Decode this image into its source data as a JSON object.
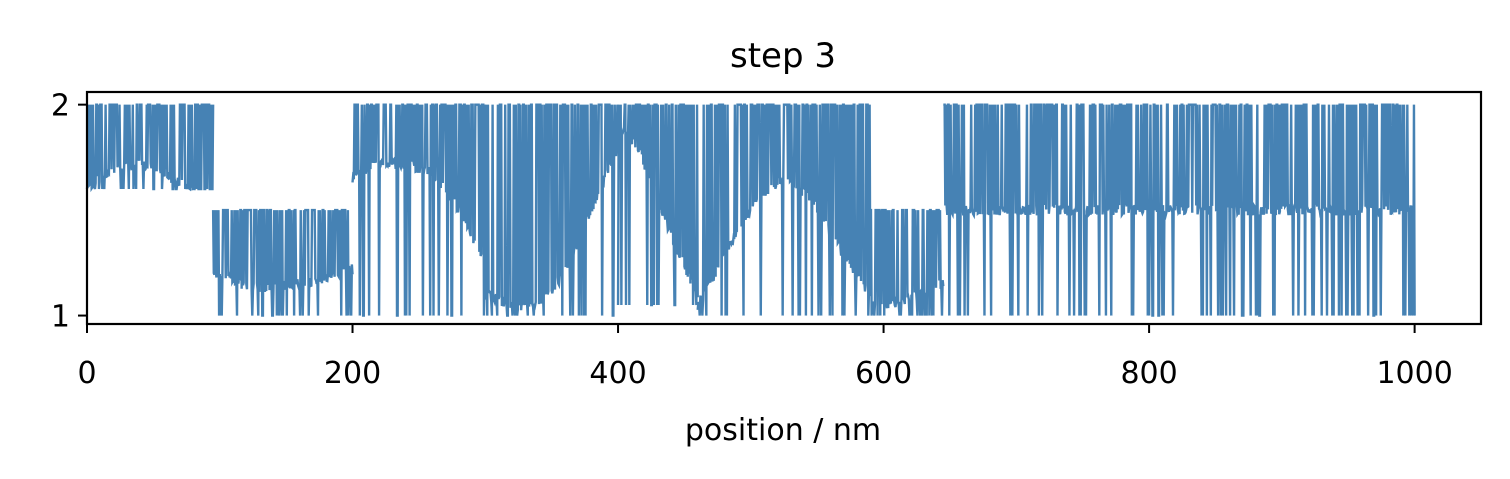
{
  "chart_data": {
    "type": "line",
    "title": "step 3",
    "xlabel": "position / nm",
    "ylabel": "",
    "xlim": [
      0,
      1050
    ],
    "ylim": [
      0.96,
      2.06
    ],
    "xticks": [
      0,
      200,
      400,
      600,
      800,
      1000
    ],
    "xtick_labels": [
      "0",
      "200",
      "400",
      "600",
      "800",
      "1000"
    ],
    "yticks": [
      1,
      2
    ],
    "ytick_labels": [
      "1",
      "2"
    ],
    "grid": false,
    "series": [
      {
        "color": "#4682b4",
        "segments": [
          {
            "x": [
              0,
              95
            ],
            "low": 1.6,
            "high": 2.0,
            "base": [
              1.6,
              1.7,
              1.72,
              1.68,
              1.6,
              1.55
            ]
          },
          {
            "x": [
              95,
              200
            ],
            "low": 1.0,
            "high": 1.5,
            "base": [
              1.2,
              1.15,
              1.13,
              1.15,
              1.18,
              1.22
            ]
          },
          {
            "x": [
              200,
              300
            ],
            "low": 1.0,
            "high": 2.0,
            "base": [
              1.65,
              1.72,
              1.72,
              1.68,
              1.5,
              1.25
            ]
          },
          {
            "x": [
              300,
              400
            ],
            "low": 1.0,
            "high": 2.0,
            "base": [
              1.1,
              1.05,
              1.05,
              1.2,
              1.5,
              1.8
            ]
          },
          {
            "x": [
              400,
              460
            ],
            "low": 1.05,
            "high": 2.0,
            "base": [
              1.9,
              1.8,
              1.55,
              1.3,
              1.1
            ]
          },
          {
            "x": [
              460,
              590
            ],
            "low": 1.0,
            "high": 2.0,
            "base": [
              1.05,
              1.3,
              1.55,
              1.65,
              1.55,
              1.3,
              1.1
            ]
          },
          {
            "x": [
              590,
              645
            ],
            "low": 1.0,
            "high": 1.5,
            "base": [
              1.05,
              1.05,
              1.1,
              1.15
            ]
          },
          {
            "x": [
              645,
              1000
            ],
            "low": 1.0,
            "high": 2.0,
            "base": [
              1.5,
              1.5,
              1.5,
              1.5,
              1.5
            ]
          }
        ]
      }
    ]
  }
}
